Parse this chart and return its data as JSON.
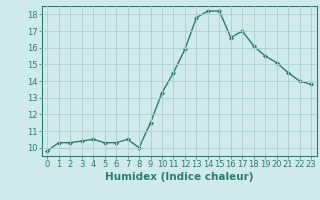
{
  "x": [
    0,
    1,
    2,
    3,
    4,
    5,
    6,
    7,
    8,
    9,
    10,
    11,
    12,
    13,
    14,
    15,
    16,
    17,
    18,
    19,
    20,
    21,
    22,
    23
  ],
  "y": [
    9.8,
    10.3,
    10.3,
    10.4,
    10.5,
    10.3,
    10.3,
    10.5,
    10.0,
    11.5,
    13.3,
    14.5,
    15.9,
    17.8,
    18.2,
    18.2,
    16.6,
    17.0,
    16.1,
    15.5,
    15.1,
    14.5,
    14.0,
    13.8
  ],
  "line_color": "#2d7d6e",
  "marker": "D",
  "marker_size": 2.0,
  "bg_color": "#ceeaea",
  "grid_color": "#aecece",
  "xlabel": "Humidex (Indice chaleur)",
  "ylim": [
    9.5,
    18.5
  ],
  "xlim": [
    -0.5,
    23.5
  ],
  "yticks": [
    10,
    11,
    12,
    13,
    14,
    15,
    16,
    17,
    18
  ],
  "xticks": [
    0,
    1,
    2,
    3,
    4,
    5,
    6,
    7,
    8,
    9,
    10,
    11,
    12,
    13,
    14,
    15,
    16,
    17,
    18,
    19,
    20,
    21,
    22,
    23
  ],
  "tick_label_fontsize": 6.0,
  "xlabel_fontsize": 7.5
}
